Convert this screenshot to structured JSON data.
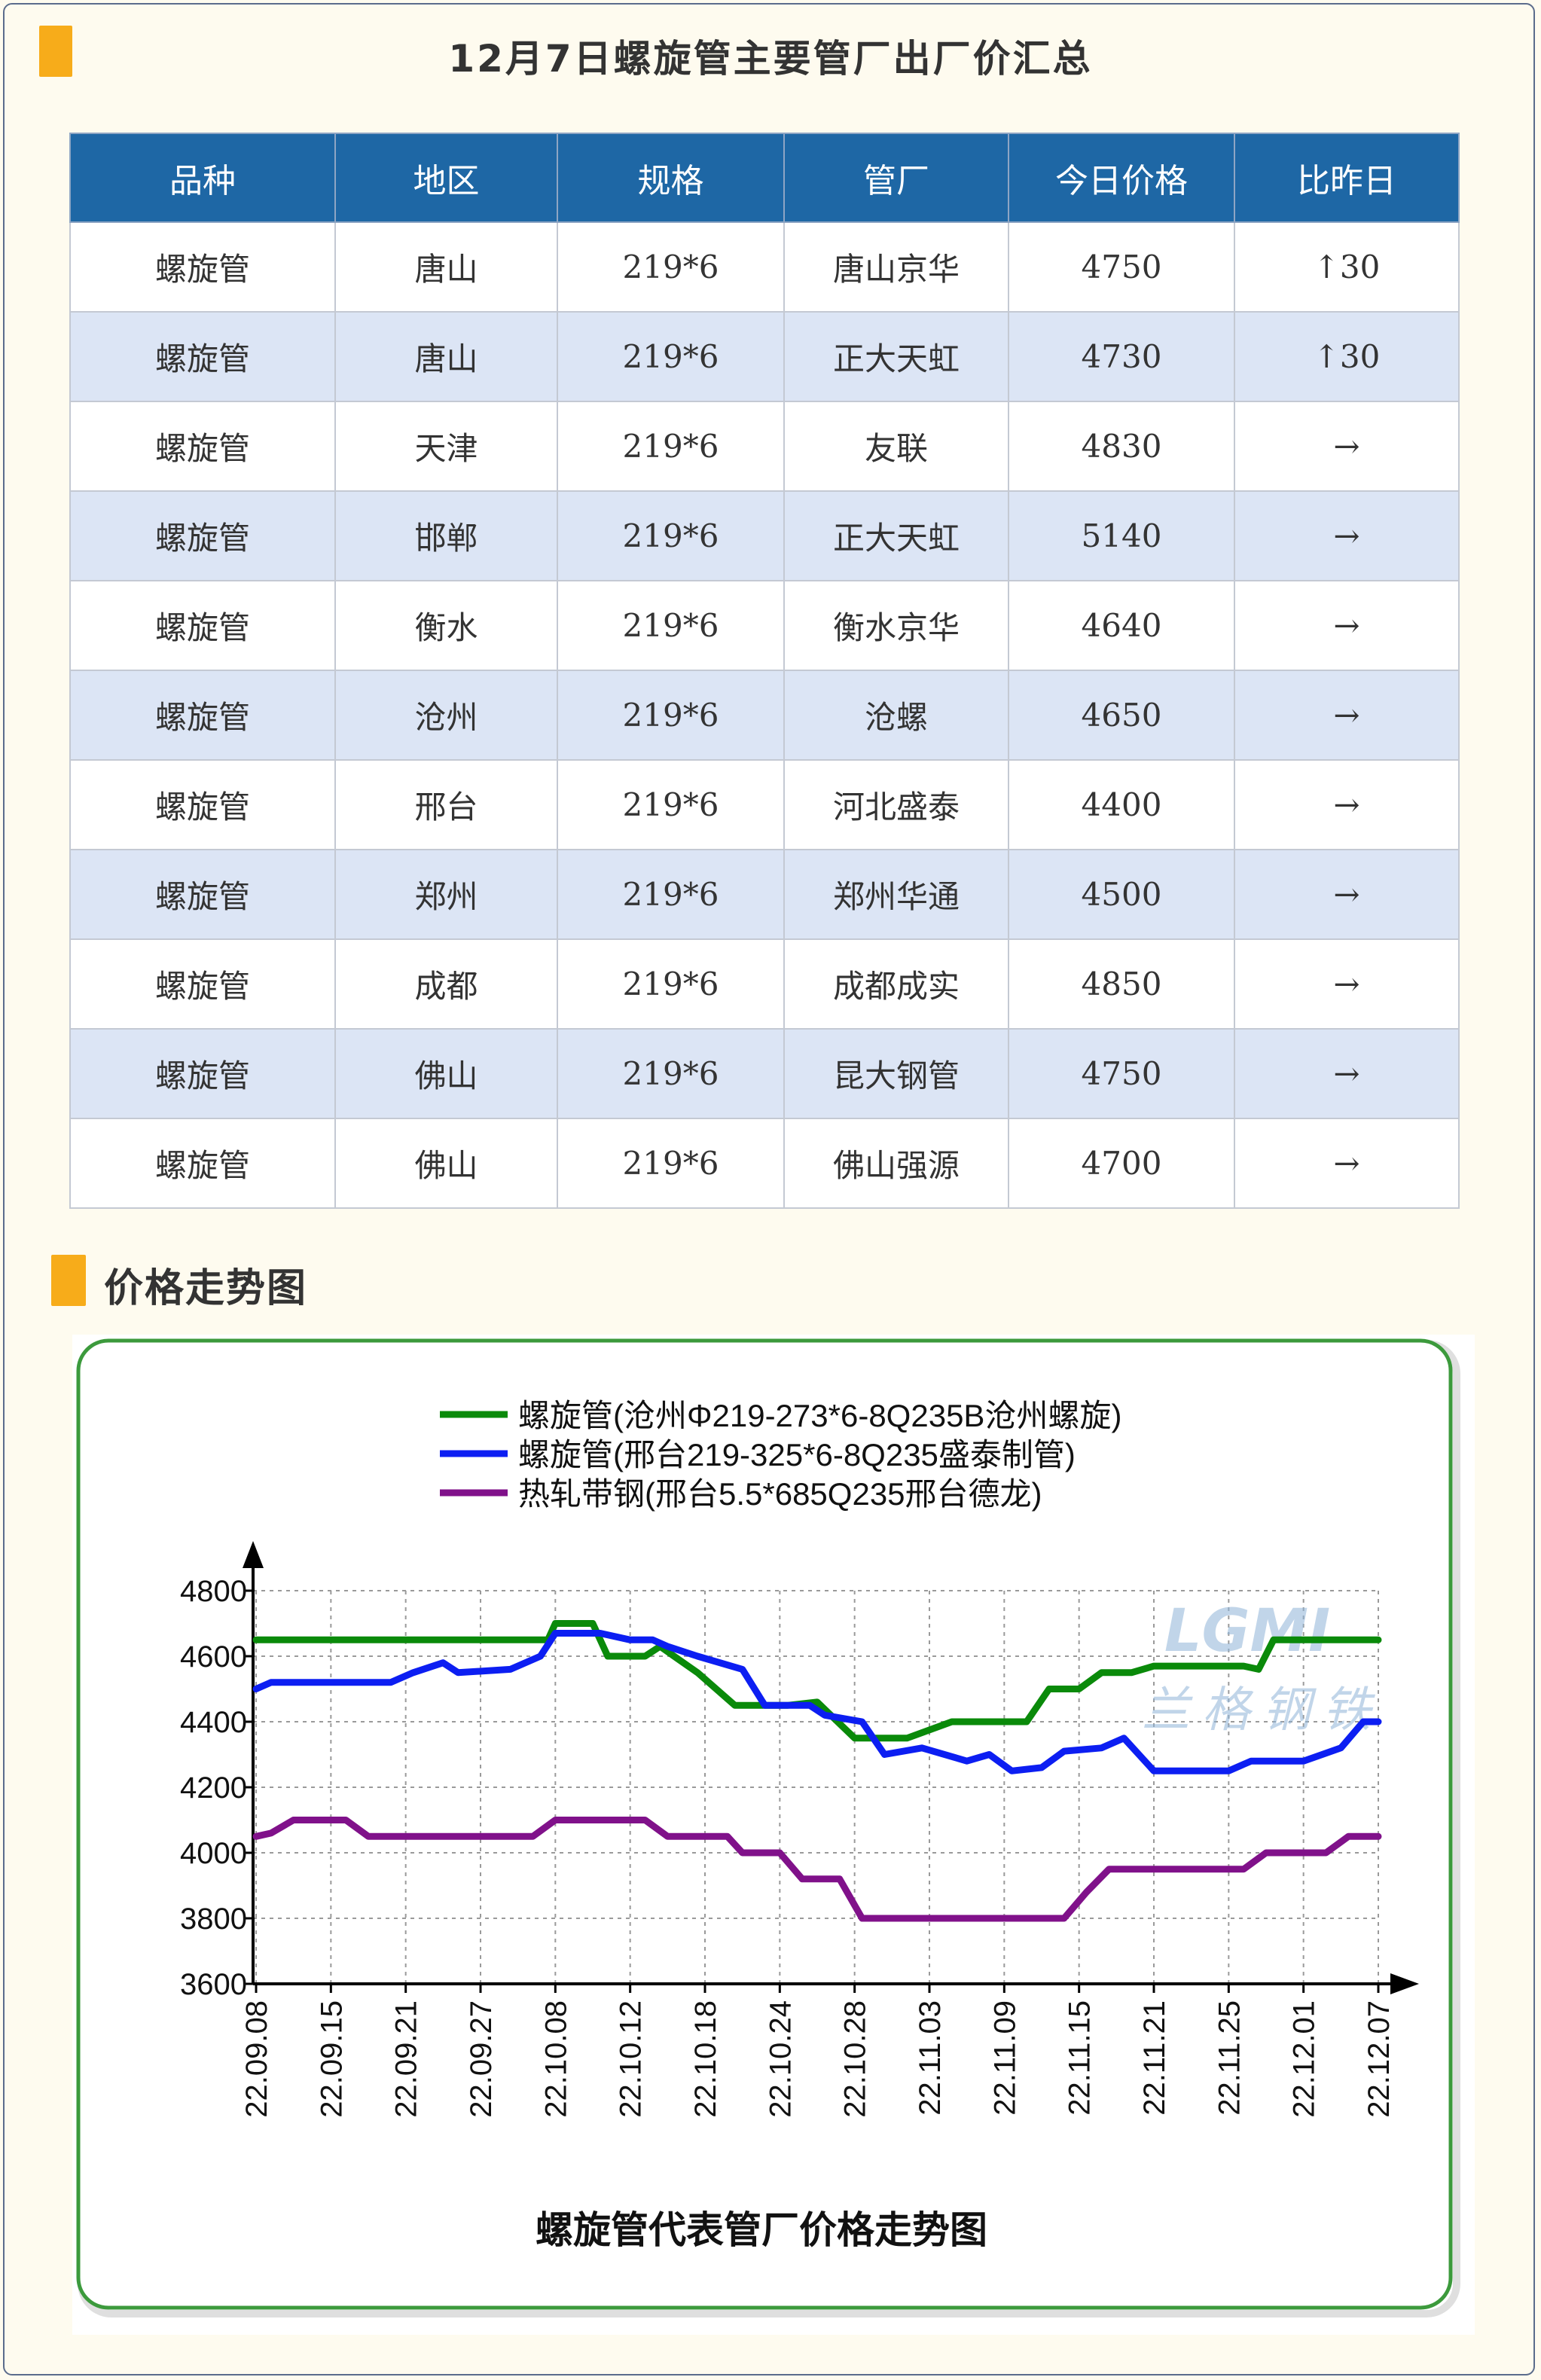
{
  "header": {
    "title": "12月7日螺旋管主要管厂出厂价汇总"
  },
  "table": {
    "columns": [
      "品种",
      "地区",
      "规格",
      "管厂",
      "今日价格",
      "比昨日"
    ],
    "rows": [
      {
        "product": "螺旋管",
        "region": "唐山",
        "spec": "219*6",
        "mill": "唐山京华",
        "price": "4750",
        "change": "↑30",
        "trend": "up"
      },
      {
        "product": "螺旋管",
        "region": "唐山",
        "spec": "219*6",
        "mill": "正大天虹",
        "price": "4730",
        "change": "↑30",
        "trend": "up"
      },
      {
        "product": "螺旋管",
        "region": "天津",
        "spec": "219*6",
        "mill": "友联",
        "price": "4830",
        "change": "→",
        "trend": "flat"
      },
      {
        "product": "螺旋管",
        "region": "邯郸",
        "spec": "219*6",
        "mill": "正大天虹",
        "price": "5140",
        "change": "→",
        "trend": "flat"
      },
      {
        "product": "螺旋管",
        "region": "衡水",
        "spec": "219*6",
        "mill": "衡水京华",
        "price": "4640",
        "change": "→",
        "trend": "flat"
      },
      {
        "product": "螺旋管",
        "region": "沧州",
        "spec": "219*6",
        "mill": "沧螺",
        "price": "4650",
        "change": "→",
        "trend": "flat"
      },
      {
        "product": "螺旋管",
        "region": "邢台",
        "spec": "219*6",
        "mill": "河北盛泰",
        "price": "4400",
        "change": "→",
        "trend": "flat"
      },
      {
        "product": "螺旋管",
        "region": "郑州",
        "spec": "219*6",
        "mill": "郑州华通",
        "price": "4500",
        "change": "→",
        "trend": "flat"
      },
      {
        "product": "螺旋管",
        "region": "成都",
        "spec": "219*6",
        "mill": "成都成实",
        "price": "4850",
        "change": "→",
        "trend": "flat"
      },
      {
        "product": "螺旋管",
        "region": "佛山",
        "spec": "219*6",
        "mill": "昆大钢管",
        "price": "4750",
        "change": "→",
        "trend": "flat"
      },
      {
        "product": "螺旋管",
        "region": "佛山",
        "spec": "219*6",
        "mill": "佛山强源",
        "price": "4700",
        "change": "→",
        "trend": "flat"
      }
    ]
  },
  "section": {
    "title": "价格走势图"
  },
  "colors": {
    "marker": "#f7ac1a",
    "header_bg": "#1e67a5",
    "row_alt": "#dce5f5",
    "up": "#e8121a",
    "frame_border": "#3c9a3c"
  },
  "watermark": {
    "logo": "LGMI",
    "text": "兰格钢铁"
  },
  "chart_data": {
    "type": "line",
    "title": "螺旋管代表管厂价格走势图",
    "ylim": [
      3600,
      4800
    ],
    "yticks": [
      3600,
      3800,
      4000,
      4200,
      4400,
      4600,
      4800
    ],
    "x_ticks": [
      "22.09.08",
      "22.09.15",
      "22.09.21",
      "22.09.27",
      "22.10.08",
      "22.10.12",
      "22.10.18",
      "22.10.24",
      "22.10.28",
      "22.11.03",
      "22.11.09",
      "22.11.15",
      "22.11.21",
      "22.11.25",
      "22.12.01",
      "22.12.07"
    ],
    "legend_position": "top",
    "grid": true,
    "series": [
      {
        "name": "螺旋管(沧州Φ219-273*6-8Q235B沧州螺旋)",
        "color": "#0a8a0a",
        "values": [
          [
            0,
            4650
          ],
          [
            3.9,
            4650
          ],
          [
            4.0,
            4700
          ],
          [
            4.5,
            4700
          ],
          [
            4.7,
            4600
          ],
          [
            5.2,
            4600
          ],
          [
            5.4,
            4630
          ],
          [
            5.9,
            4550
          ],
          [
            6.4,
            4450
          ],
          [
            6.7,
            4450
          ],
          [
            7.1,
            4450
          ],
          [
            7.5,
            4460
          ],
          [
            8.0,
            4350
          ],
          [
            8.7,
            4350
          ],
          [
            9.3,
            4400
          ],
          [
            10.0,
            4400
          ],
          [
            10.3,
            4400
          ],
          [
            10.6,
            4500
          ],
          [
            11.0,
            4500
          ],
          [
            11.3,
            4550
          ],
          [
            11.7,
            4550
          ],
          [
            12.0,
            4570
          ],
          [
            13.2,
            4570
          ],
          [
            13.4,
            4560
          ],
          [
            13.6,
            4650
          ],
          [
            15,
            4650
          ]
        ]
      },
      {
        "name": "螺旋管(邢台219-325*6-8Q235盛泰制管)",
        "color": "#0c1ef2",
        "values": [
          [
            0,
            4500
          ],
          [
            0.2,
            4520
          ],
          [
            1.8,
            4520
          ],
          [
            2.1,
            4550
          ],
          [
            2.5,
            4580
          ],
          [
            2.7,
            4550
          ],
          [
            3.4,
            4560
          ],
          [
            3.8,
            4600
          ],
          [
            4.0,
            4670
          ],
          [
            4.6,
            4670
          ],
          [
            5.0,
            4650
          ],
          [
            5.3,
            4650
          ],
          [
            5.5,
            4630
          ],
          [
            5.9,
            4600
          ],
          [
            6.5,
            4560
          ],
          [
            6.8,
            4450
          ],
          [
            7.4,
            4450
          ],
          [
            7.6,
            4420
          ],
          [
            8.1,
            4400
          ],
          [
            8.4,
            4300
          ],
          [
            8.9,
            4320
          ],
          [
            9.5,
            4280
          ],
          [
            9.8,
            4300
          ],
          [
            10.1,
            4250
          ],
          [
            10.5,
            4260
          ],
          [
            10.8,
            4310
          ],
          [
            11.3,
            4320
          ],
          [
            11.6,
            4350
          ],
          [
            12.0,
            4250
          ],
          [
            13.0,
            4250
          ],
          [
            13.3,
            4280
          ],
          [
            14.0,
            4280
          ],
          [
            14.5,
            4320
          ],
          [
            14.8,
            4400
          ],
          [
            15,
            4400
          ]
        ]
      },
      {
        "name": "热轧带钢(邢台5.5*685Q235邢台德龙)",
        "color": "#80118a",
        "values": [
          [
            0,
            4050
          ],
          [
            0.2,
            4060
          ],
          [
            0.5,
            4100
          ],
          [
            1.2,
            4100
          ],
          [
            1.5,
            4050
          ],
          [
            3.7,
            4050
          ],
          [
            4.0,
            4100
          ],
          [
            5.2,
            4100
          ],
          [
            5.5,
            4050
          ],
          [
            6.3,
            4050
          ],
          [
            6.5,
            4000
          ],
          [
            7.0,
            4000
          ],
          [
            7.3,
            3920
          ],
          [
            7.8,
            3920
          ],
          [
            8.1,
            3800
          ],
          [
            10.8,
            3800
          ],
          [
            11.1,
            3880
          ],
          [
            11.4,
            3950
          ],
          [
            13.2,
            3950
          ],
          [
            13.5,
            4000
          ],
          [
            14.3,
            4000
          ],
          [
            14.6,
            4050
          ],
          [
            15,
            4050
          ]
        ]
      }
    ]
  }
}
